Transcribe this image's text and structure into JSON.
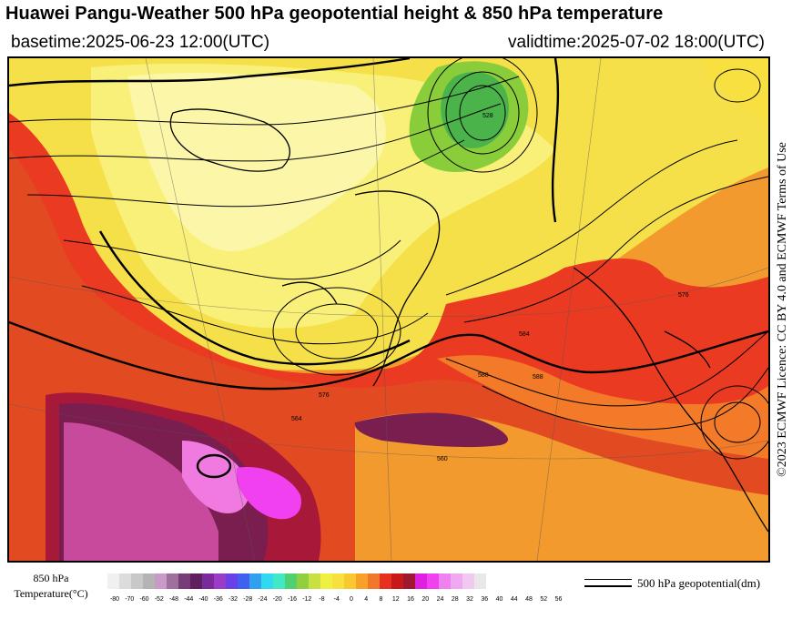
{
  "header": {
    "title": "Huawei Pangu-Weather 500 hPa geopotential height & 850 hPa temperature",
    "basetime": "basetime:2025-06-23 12:00(UTC)",
    "validtime": "validtime:2025-07-02 18:00(UTC)"
  },
  "sidebar_credit": "©2023 ECMWF Licence: CC BY 4.0 and ECMWF Terms of Use",
  "legend": {
    "temp_label_line1": "850 hPa",
    "temp_label_line2": "Temperature(°C)",
    "ticks": [
      "-80",
      "-70",
      "-60",
      "-52",
      "-48",
      "-44",
      "-40",
      "-36",
      "-32",
      "-28",
      "-24",
      "-20",
      "-16",
      "-12",
      "-8",
      "-4",
      "0",
      "4",
      "8",
      "12",
      "16",
      "20",
      "24",
      "28",
      "32",
      "36",
      "40",
      "44",
      "48",
      "52",
      "56"
    ],
    "colors": [
      "#f0f0f0",
      "#dcdcdc",
      "#c8c8c8",
      "#b4b4b4",
      "#c89ac8",
      "#a0709c",
      "#783c78",
      "#602060",
      "#7a2a9a",
      "#9a3cc8",
      "#6a40e8",
      "#4060f0",
      "#30a0f0",
      "#30d8f0",
      "#40e8c8",
      "#50d070",
      "#90d040",
      "#c8e040",
      "#f0f040",
      "#f8e040",
      "#f8c830",
      "#f8a028",
      "#f07828",
      "#e83020",
      "#c81818",
      "#a01830",
      "#e020e0",
      "#f040f0",
      "#f080f0",
      "#f0a8f0",
      "#f0c8f0",
      "#e8e8e8"
    ],
    "contour_label": "500 hPa geopotential(dm)"
  },
  "map": {
    "variables": [
      "500 hPa geopotential height",
      "850 hPa temperature"
    ],
    "contour_labels": [
      "576",
      "564",
      "528",
      "584",
      "588",
      "560",
      "576",
      "588"
    ]
  }
}
